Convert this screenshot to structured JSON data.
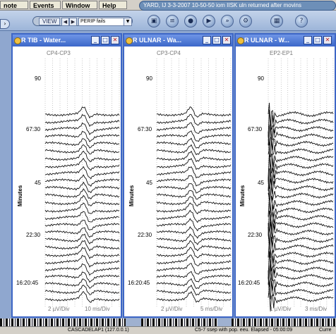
{
  "menubar": {
    "items": [
      "note",
      "Events",
      "Window",
      "Help"
    ],
    "status": "YARD, IJ 3-3-2007 10-50-50 iom IISK uln returned after movins"
  },
  "toolbar": {
    "view_label": "VIEW",
    "view_select": "PERIP fails",
    "buttons": [
      "window-icon",
      "page-icon",
      "record-icon",
      "play-icon",
      "fast-forward-icon",
      "settings-icon",
      "photo-icon",
      "help-icon"
    ]
  },
  "panels": [
    {
      "title": "R TIB - Water...",
      "channel": "CP4-CP3",
      "y_axis_label": "Minutes",
      "ticks": [
        "90",
        "67:30",
        "45",
        "22:30",
        "16:20:45"
      ],
      "scale": "2 µV/Div",
      "time": "10 ms/Div"
    },
    {
      "title": "R ULNAR - Wa...",
      "channel": "CP3-CP4",
      "y_axis_label": "Minutes",
      "ticks": [
        "90",
        "67:30",
        "45",
        "22:30",
        "16:20:45"
      ],
      "scale": "2 µV/Div",
      "time": "5 ms/Div"
    },
    {
      "title": "R ULNAR - W...",
      "channel": "EP2-EP1",
      "y_axis_label": "Minutes",
      "ticks": [
        "90",
        "67:30",
        "45",
        "22:30",
        "16:20:45"
      ],
      "scale": "1 µV/Div",
      "time": "3 ms/Div"
    }
  ],
  "statusbar": {
    "host": "CASCADELAP1 (127.0.0.1)",
    "message": "C5-7 ssep with pop. eeu. Elapsed - 05:00:09",
    "trailing": "Curre"
  },
  "colors": {
    "panel_border": "#3d66c6",
    "title_bar": "#3b67c9",
    "desktop": "#8fa7cf"
  }
}
